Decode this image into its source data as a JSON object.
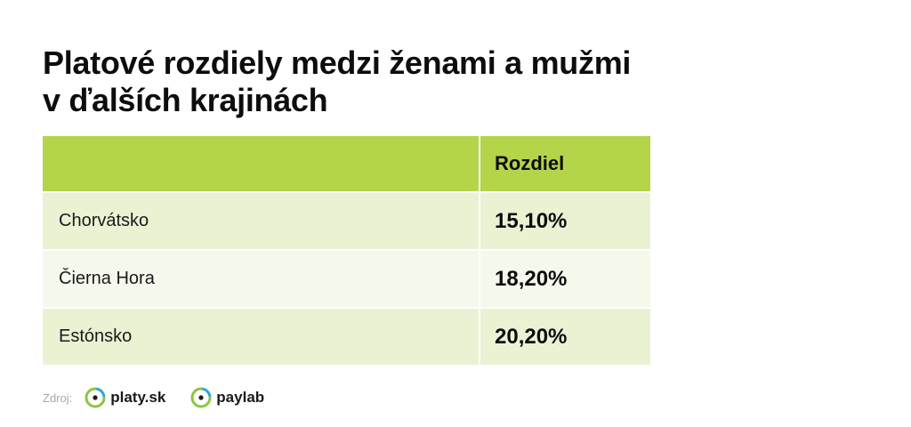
{
  "title": {
    "line1": "Platové rozdiely medzi ženami a mužmi",
    "line2": "v ďalších krajinách"
  },
  "table": {
    "header": {
      "name": "",
      "value": "Rozdiel"
    },
    "rows": [
      {
        "name": "Chorvátsko",
        "value": "15,10%"
      },
      {
        "name": "Čierna Hora",
        "value": "18,20%"
      },
      {
        "name": "Estónsko",
        "value": "20,20%"
      }
    ]
  },
  "source": {
    "label": "Zdroj:",
    "brands": [
      "platy.sk",
      "paylab"
    ]
  },
  "colors": {
    "header_bg": "#b4d44a",
    "row_bg_1": "#eaf2d4",
    "row_bg_2": "#f5f9ec",
    "logo_green": "#8cc63f",
    "logo_blue": "#2aa6d6"
  }
}
